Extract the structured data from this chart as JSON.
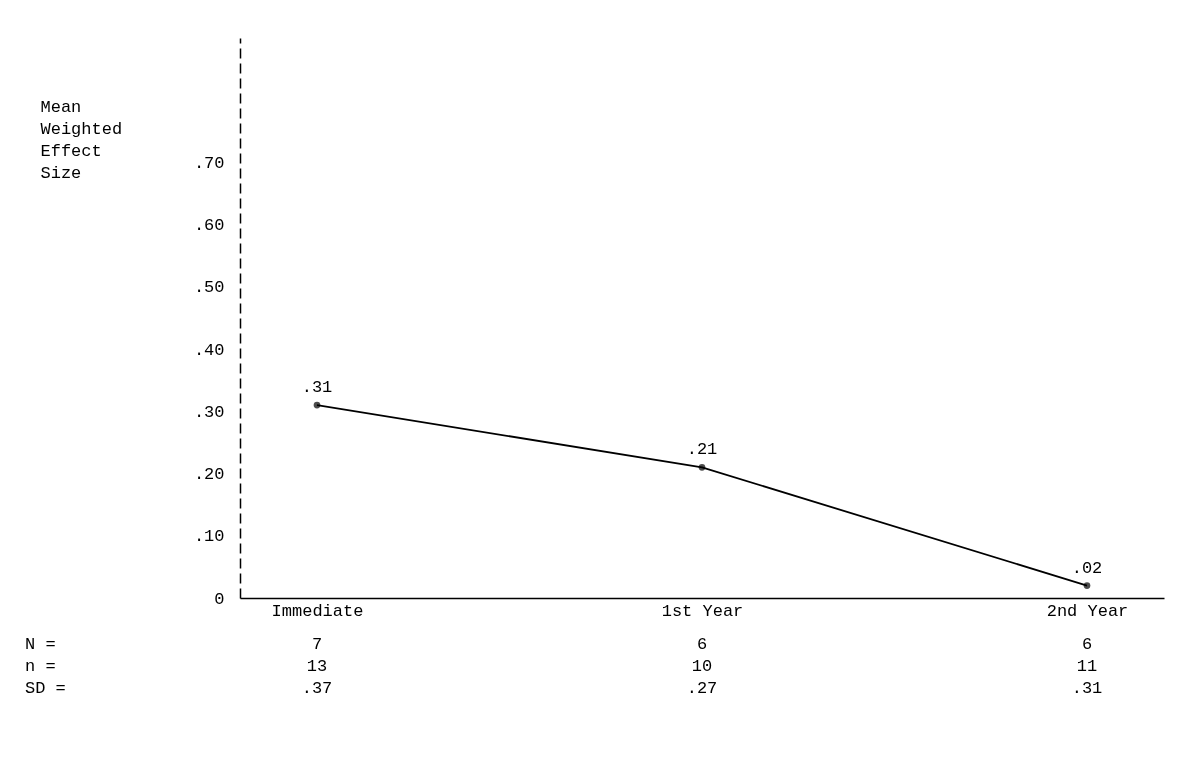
{
  "chart_data": {
    "type": "line",
    "ylabel": "Mean Weighted Effect Size",
    "categories": [
      "Immediate",
      "1st Year",
      "2nd Year"
    ],
    "values": [
      0.31,
      0.21,
      0.02
    ],
    "value_labels": [
      ".31",
      ".21",
      ".02"
    ],
    "color": "#000000",
    "marker": "circle",
    "line_style": "solid",
    "grid": false,
    "ylim": [
      0,
      0.9
    ],
    "yticks": [
      0,
      {
        "value": 0.1,
        "label": ".10"
      },
      {
        "value": 0.2,
        "label": ".20"
      },
      {
        "value": 0.3,
        "label": ".30"
      },
      {
        "value": 0.4,
        "label": ".40"
      },
      {
        "value": 0.5,
        "label": ".50"
      },
      {
        "value": 0.6,
        "label": ".60"
      },
      {
        "value": 0.7,
        "label": ".70"
      }
    ],
    "annotations": [
      "N =",
      "7",
      "6",
      "6",
      "n =",
      "13",
      "10",
      "11",
      "SD =",
      ".37",
      ".27",
      ".31"
    ]
  }
}
